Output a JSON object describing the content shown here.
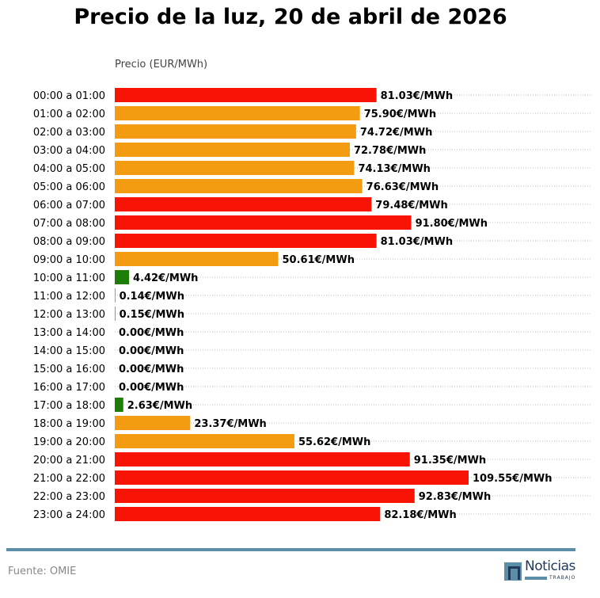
{
  "chart_data": {
    "type": "bar",
    "orientation": "horizontal",
    "title": "Precio de la luz, 20 de abril de 2026",
    "xlabel": "Precio (EUR/MWh)",
    "ylabel": "",
    "xlim": [
      0,
      147
    ],
    "grid": "horizontal dotted",
    "unit_suffix": "€/MWh",
    "categories": [
      "00:00 a 01:00",
      "01:00 a 02:00",
      "02:00 a 03:00",
      "03:00 a 04:00",
      "04:00 a 05:00",
      "05:00 a 06:00",
      "06:00 a 07:00",
      "07:00 a 08:00",
      "08:00 a 09:00",
      "09:00 a 10:00",
      "10:00 a 11:00",
      "11:00 a 12:00",
      "12:00 a 13:00",
      "13:00 a 14:00",
      "14:00 a 15:00",
      "15:00 a 16:00",
      "16:00 a 17:00",
      "17:00 a 18:00",
      "18:00 a 19:00",
      "19:00 a 20:00",
      "20:00 a 21:00",
      "21:00 a 22:00",
      "22:00 a 23:00",
      "23:00 a 24:00"
    ],
    "values": [
      81.03,
      75.9,
      74.72,
      72.78,
      74.13,
      76.63,
      79.48,
      91.8,
      81.03,
      50.61,
      4.42,
      0.14,
      0.15,
      0.0,
      0.0,
      0.0,
      0.0,
      2.63,
      23.37,
      55.62,
      91.35,
      109.55,
      92.83,
      82.18
    ],
    "levels": [
      "high",
      "mid",
      "mid",
      "mid",
      "mid",
      "mid",
      "high",
      "high",
      "high",
      "mid",
      "low",
      "low",
      "low",
      "low",
      "low",
      "low",
      "low",
      "low",
      "mid",
      "mid",
      "high",
      "high",
      "high",
      "high"
    ],
    "colors": {
      "high": "#f71405",
      "mid": "#f39c12",
      "low": "#1e7d06"
    }
  },
  "footer": {
    "source": "Fuente: OMIE",
    "logo_text": "Noticias",
    "logo_sub": "TRABAJO"
  }
}
